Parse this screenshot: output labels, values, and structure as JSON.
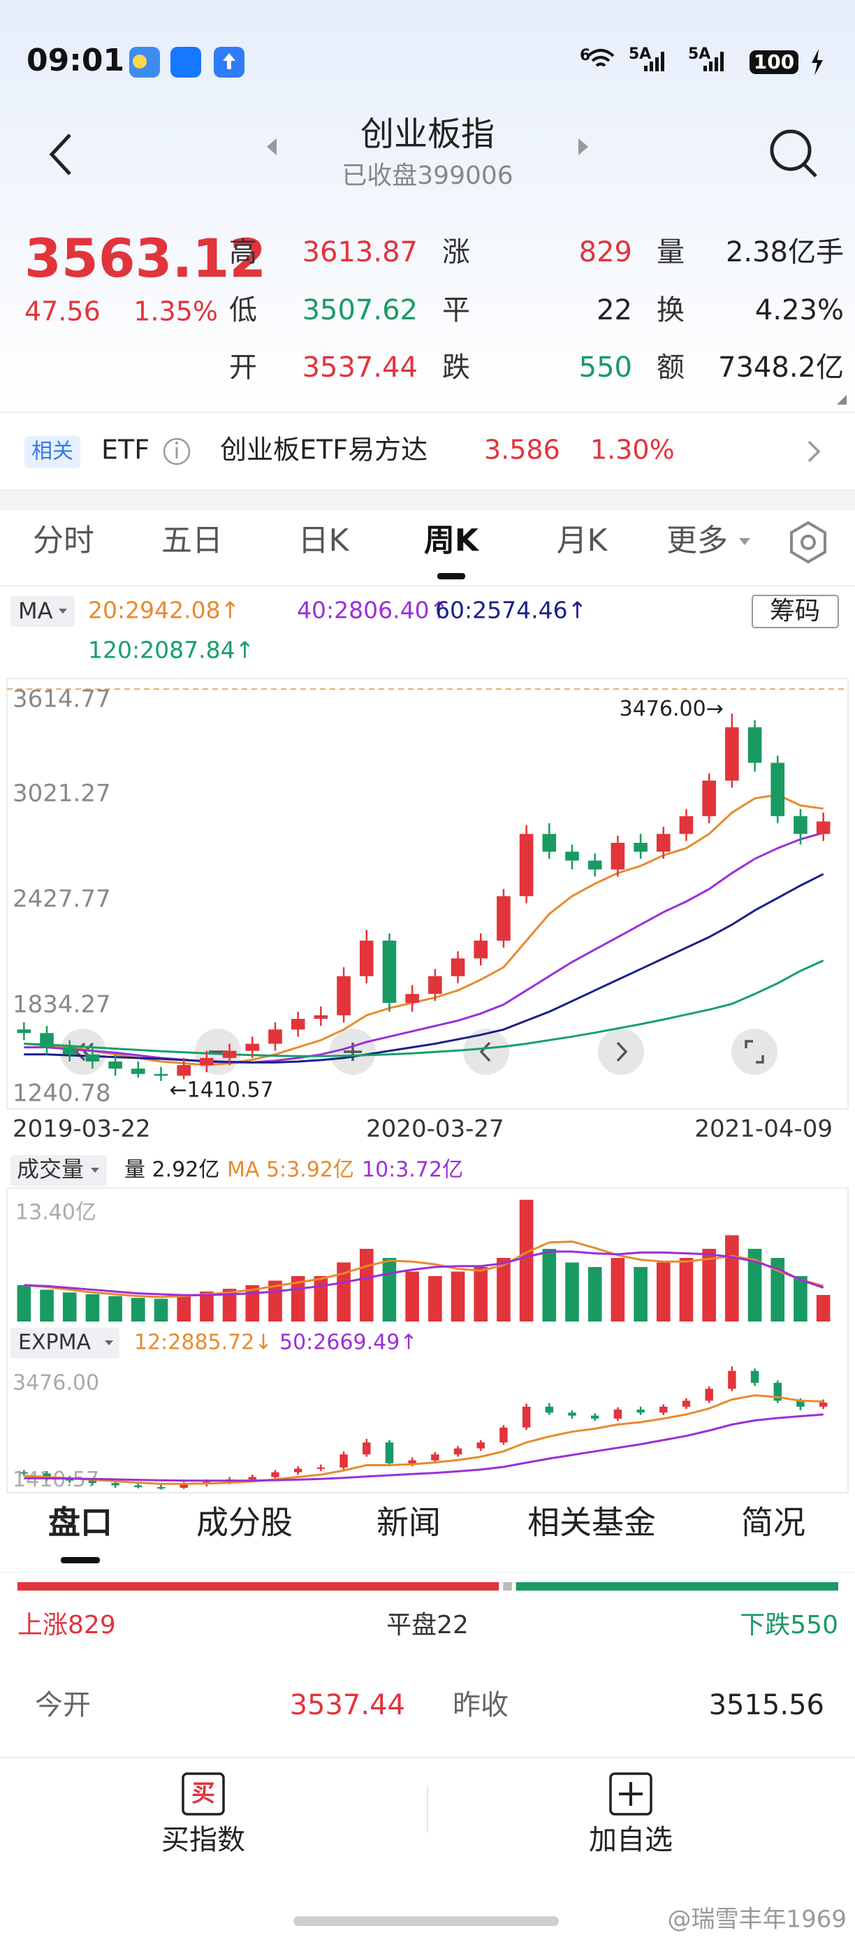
{
  "status": {
    "time": "09:01",
    "wifi": "6",
    "net1": "5A",
    "net2": "5A",
    "battery": "100"
  },
  "header": {
    "title": "创业板指",
    "subtitle": "已收盘399006"
  },
  "quote": {
    "price": "3563.12",
    "change": "47.56",
    "pct": "1.35%",
    "color": "#e2343b",
    "stats": [
      [
        {
          "label": "高",
          "value": "3613.87",
          "color": "#e2343b"
        },
        {
          "label": "低",
          "value": "3507.62",
          "color": "#1a9a63"
        },
        {
          "label": "开",
          "value": "3537.44",
          "color": "#e2343b"
        }
      ],
      [
        {
          "label": "涨",
          "value": "829",
          "color": "#e2343b"
        },
        {
          "label": "平",
          "value": "22",
          "color": "#222222"
        },
        {
          "label": "跌",
          "value": "550",
          "color": "#1a9a63"
        }
      ],
      [
        {
          "label": "量",
          "value": "2.38亿手",
          "color": "#222222"
        },
        {
          "label": "换",
          "value": "4.23%",
          "color": "#222222"
        },
        {
          "label": "额",
          "value": "7348.2亿",
          "color": "#222222"
        }
      ]
    ]
  },
  "etf": {
    "tag": "相关",
    "label": "ETF",
    "name": "创业板ETF易方达",
    "price": "3.586",
    "pct": "1.30%"
  },
  "tabs": {
    "items": [
      "分时",
      "五日",
      "日K",
      "周K",
      "月K",
      "更多"
    ],
    "active": 3
  },
  "ma_button": "MA",
  "chips_button": "筹码",
  "chart_data": [
    {
      "type": "candlestick",
      "up_color": "#e2343b",
      "down_color": "#1a9a63",
      "ylim": [
        1240.78,
        3614.77
      ],
      "yticks": [
        3614.77,
        3021.27,
        2427.77,
        1834.27,
        1240.78
      ],
      "top_line": "dashed",
      "grid": false,
      "high_label": "3476.00→",
      "low_label": "←1410.57",
      "categories": [
        "2019-03-22",
        null,
        null,
        null,
        null,
        null,
        null,
        null,
        null,
        null,
        null,
        null,
        null,
        null,
        null,
        null,
        null,
        null,
        "2020-03-27",
        null,
        null,
        null,
        null,
        null,
        null,
        null,
        null,
        null,
        null,
        null,
        null,
        null,
        null,
        null,
        null,
        "2021-04-09"
      ],
      "candles": [
        {
          "open": 1700,
          "high": 1740,
          "low": 1640,
          "close": 1680
        },
        {
          "open": 1680,
          "high": 1720,
          "low": 1560,
          "close": 1600
        },
        {
          "open": 1600,
          "high": 1640,
          "low": 1520,
          "close": 1560
        },
        {
          "open": 1560,
          "high": 1600,
          "low": 1480,
          "close": 1520
        },
        {
          "open": 1520,
          "high": 1560,
          "low": 1440,
          "close": 1480
        },
        {
          "open": 1480,
          "high": 1520,
          "low": 1430,
          "close": 1450
        },
        {
          "open": 1450,
          "high": 1490,
          "low": 1410.57,
          "close": 1440
        },
        {
          "open": 1440,
          "high": 1540,
          "low": 1420,
          "close": 1500
        },
        {
          "open": 1500,
          "high": 1580,
          "low": 1460,
          "close": 1540
        },
        {
          "open": 1540,
          "high": 1620,
          "low": 1500,
          "close": 1580
        },
        {
          "open": 1580,
          "high": 1660,
          "low": 1540,
          "close": 1620
        },
        {
          "open": 1620,
          "high": 1740,
          "low": 1580,
          "close": 1700
        },
        {
          "open": 1700,
          "high": 1800,
          "low": 1660,
          "close": 1760
        },
        {
          "open": 1760,
          "high": 1830,
          "low": 1720,
          "close": 1780
        },
        {
          "open": 1780,
          "high": 2050,
          "low": 1740,
          "close": 2000
        },
        {
          "open": 2000,
          "high": 2260,
          "low": 1960,
          "close": 2200
        },
        {
          "open": 2200,
          "high": 2240,
          "low": 1800,
          "close": 1850
        },
        {
          "open": 1850,
          "high": 1950,
          "low": 1800,
          "close": 1900
        },
        {
          "open": 1900,
          "high": 2040,
          "low": 1860,
          "close": 2000
        },
        {
          "open": 2000,
          "high": 2140,
          "low": 1960,
          "close": 2100
        },
        {
          "open": 2100,
          "high": 2240,
          "low": 2060,
          "close": 2200
        },
        {
          "open": 2200,
          "high": 2490,
          "low": 2160,
          "close": 2450
        },
        {
          "open": 2450,
          "high": 2850,
          "low": 2410,
          "close": 2800
        },
        {
          "open": 2800,
          "high": 2860,
          "low": 2660,
          "close": 2700
        },
        {
          "open": 2700,
          "high": 2740,
          "low": 2600,
          "close": 2650
        },
        {
          "open": 2650,
          "high": 2690,
          "low": 2560,
          "close": 2600
        },
        {
          "open": 2600,
          "high": 2790,
          "low": 2560,
          "close": 2750
        },
        {
          "open": 2750,
          "high": 2800,
          "low": 2660,
          "close": 2700
        },
        {
          "open": 2700,
          "high": 2840,
          "low": 2660,
          "close": 2800
        },
        {
          "open": 2800,
          "high": 2940,
          "low": 2760,
          "close": 2900
        },
        {
          "open": 2900,
          "high": 3140,
          "low": 2860,
          "close": 3100
        },
        {
          "open": 3100,
          "high": 3476.0,
          "low": 3060,
          "close": 3400
        },
        {
          "open": 3400,
          "high": 3440,
          "low": 3150,
          "close": 3200
        },
        {
          "open": 3200,
          "high": 3240,
          "low": 2860,
          "close": 2900
        },
        {
          "open": 2900,
          "high": 2940,
          "low": 2740,
          "close": 2800
        },
        {
          "open": 2800,
          "high": 2920,
          "low": 2760,
          "close": 2870
        }
      ],
      "series": [
        {
          "name": "20",
          "label": "20:2942.08↑",
          "color": "#e88a2e",
          "values": [
            1620,
            1610,
            1600,
            1580,
            1560,
            1540,
            1520,
            1510,
            1500,
            1510,
            1530,
            1560,
            1600,
            1640,
            1700,
            1780,
            1820,
            1850,
            1880,
            1920,
            1980,
            2050,
            2200,
            2350,
            2450,
            2520,
            2580,
            2620,
            2680,
            2720,
            2800,
            2920,
            3000,
            3020,
            2960,
            2942.08
          ]
        },
        {
          "name": "40",
          "label": "40:2806.40↑",
          "color": "#9b2fd8",
          "values": [
            1600,
            1600,
            1590,
            1580,
            1570,
            1555,
            1540,
            1530,
            1520,
            1515,
            1515,
            1525,
            1540,
            1560,
            1590,
            1630,
            1660,
            1690,
            1720,
            1750,
            1790,
            1840,
            1920,
            2000,
            2080,
            2150,
            2220,
            2290,
            2360,
            2420,
            2490,
            2580,
            2660,
            2720,
            2770,
            2806.4
          ]
        },
        {
          "name": "60",
          "label": "60:2574.46↑",
          "color": "#1a1f8a",
          "values": [
            1560,
            1560,
            1555,
            1550,
            1545,
            1540,
            1535,
            1528,
            1522,
            1518,
            1515,
            1515,
            1520,
            1528,
            1540,
            1560,
            1580,
            1600,
            1620,
            1645,
            1670,
            1700,
            1750,
            1800,
            1860,
            1920,
            1980,
            2040,
            2100,
            2160,
            2220,
            2290,
            2370,
            2440,
            2510,
            2574.46
          ]
        },
        {
          "name": "120",
          "label": "120:2087.84↑",
          "color": "#15a06a",
          "values": [
            1620,
            1615,
            1608,
            1600,
            1592,
            1585,
            1578,
            1572,
            1566,
            1560,
            1556,
            1552,
            1550,
            1550,
            1552,
            1556,
            1560,
            1566,
            1574,
            1582,
            1592,
            1604,
            1620,
            1640,
            1660,
            1682,
            1706,
            1730,
            1756,
            1784,
            1812,
            1844,
            1900,
            1960,
            2030,
            2087.84
          ]
        }
      ]
    },
    {
      "type": "bar",
      "title": "成交量",
      "ylim": [
        0,
        14
      ],
      "yticks": [
        {
          "value": 13.4,
          "label": "13.40亿"
        }
      ],
      "values": [
        4,
        3.5,
        3.2,
        3,
        2.8,
        2.6,
        2.5,
        3,
        3.3,
        3.6,
        4,
        4.5,
        5,
        5,
        6.5,
        8,
        7,
        5.5,
        5,
        5.5,
        6,
        7,
        13.4,
        8,
        6.5,
        6,
        7,
        6,
        6.5,
        7,
        8,
        9.5,
        8,
        7,
        5,
        2.92
      ],
      "last_label": "量 2.92亿",
      "series": [
        {
          "name": "MA 5",
          "label": "MA 5:3.92亿",
          "color": "#e88a2e",
          "values": [
            4,
            3.8,
            3.5,
            3.2,
            3,
            2.8,
            2.7,
            2.8,
            3,
            3.2,
            3.5,
            3.9,
            4.3,
            4.7,
            5.3,
            6.1,
            6.7,
            6.6,
            6.3,
            5.8,
            5.6,
            6.2,
            7.6,
            8.7,
            8.8,
            8.1,
            7.3,
            6.8,
            6.6,
            6.6,
            6.9,
            7.2,
            6.8,
            5.6,
            4.6,
            3.92
          ]
        },
        {
          "name": "10",
          "label": "10:3.72亿",
          "color": "#9b2fd8",
          "values": [
            4,
            3.9,
            3.7,
            3.5,
            3.3,
            3.1,
            3,
            2.9,
            2.9,
            3,
            3.1,
            3.3,
            3.6,
            3.9,
            4.3,
            4.8,
            5.3,
            5.7,
            6,
            6.1,
            6.1,
            6.4,
            7.1,
            7.7,
            7.7,
            7.5,
            7.4,
            7.6,
            7.6,
            7.5,
            7.4,
            7.1,
            6.6,
            5.8,
            4.6,
            3.72
          ]
        }
      ]
    },
    {
      "type": "candlestick",
      "title": "EXPMA",
      "ylim": [
        1380,
        3560
      ],
      "yticks": [
        {
          "value": 3476,
          "label": "3476.00"
        },
        1410.57
      ],
      "series": [
        {
          "name": "12",
          "label": "12:2885.72↓",
          "color": "#e88a2e",
          "values": [
            1640,
            1620,
            1600,
            1575,
            1550,
            1525,
            1505,
            1505,
            1510,
            1525,
            1545,
            1580,
            1620,
            1660,
            1730,
            1820,
            1820,
            1835,
            1865,
            1905,
            1960,
            2050,
            2200,
            2300,
            2380,
            2430,
            2500,
            2540,
            2600,
            2670,
            2770,
            2920,
            2990,
            2960,
            2900,
            2885.72
          ]
        },
        {
          "name": "50",
          "label": "50:2669.49↑",
          "color": "#9b2fd8",
          "values": [
            1600,
            1598,
            1594,
            1588,
            1580,
            1572,
            1564,
            1560,
            1558,
            1558,
            1560,
            1566,
            1576,
            1588,
            1606,
            1630,
            1650,
            1670,
            1690,
            1715,
            1745,
            1790,
            1860,
            1930,
            1990,
            2050,
            2110,
            2170,
            2240,
            2310,
            2400,
            2500,
            2570,
            2610,
            2640,
            2669.49
          ]
        }
      ]
    }
  ],
  "bottom_tabs": {
    "items": [
      "盘口",
      "成分股",
      "新闻",
      "相关基金",
      "简况"
    ],
    "active": 0
  },
  "breadth": {
    "up_label": "上涨",
    "up": 829,
    "flat_label": "平盘",
    "flat": 22,
    "down_label": "下跌",
    "down": 550
  },
  "today": {
    "open_label": "今开",
    "open": "3537.44",
    "prev_label": "昨收",
    "prev": "3515.56"
  },
  "actions": [
    {
      "icon": "买",
      "label": "买指数"
    },
    {
      "label": "加自选"
    }
  ],
  "watermark": "@瑞雪丰年1969"
}
